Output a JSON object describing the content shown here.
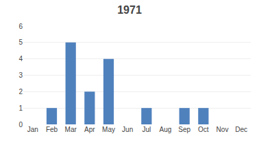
{
  "chart_data": {
    "type": "bar",
    "title": "1971",
    "categories": [
      "Jan",
      "Feb",
      "Mar",
      "Apr",
      "May",
      "Jun",
      "Jul",
      "Aug",
      "Sep",
      "Oct",
      "Nov",
      "Dec"
    ],
    "values": [
      0,
      1,
      5,
      2,
      4,
      0,
      1,
      0,
      1,
      1,
      0,
      0
    ],
    "color": "#4f81bd",
    "ylim": [
      0,
      6
    ],
    "yticks": [
      0,
      1,
      2,
      3,
      4,
      5,
      6
    ],
    "grid": true
  }
}
